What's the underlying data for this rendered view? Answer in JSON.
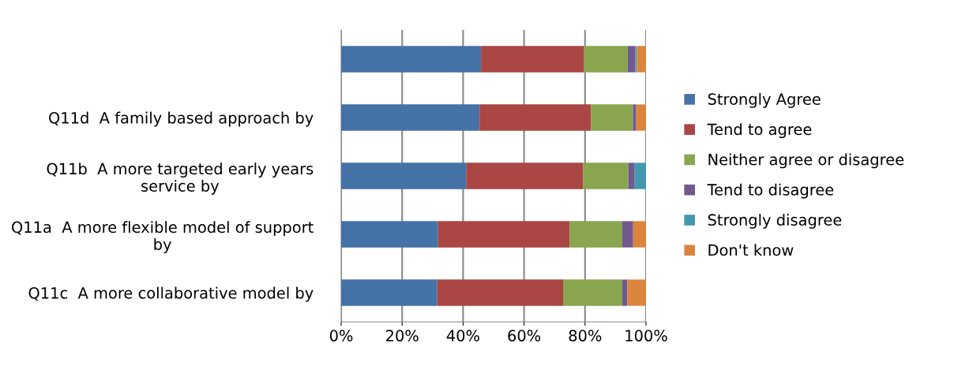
{
  "chart_data": {
    "type": "bar",
    "orientation": "horizontal",
    "stacked": true,
    "categories": [
      null,
      "Q11d  A family based approach by",
      "Q11b  A more targeted early years service by",
      "Q11a  A more flexible model of support by",
      "Q11c  A more collaborative model by"
    ],
    "series": [
      {
        "name": "Strongly Agree",
        "color": "#4572a7",
        "values": [
          45.9,
          45.4,
          41.0,
          31.7,
          31.5
        ]
      },
      {
        "name": "Tend to agree",
        "color": "#aa4643",
        "values": [
          33.8,
          36.6,
          38.4,
          43.2,
          41.3
        ]
      },
      {
        "name": "Neither agree or disagree",
        "color": "#89a54e",
        "values": [
          14.3,
          13.7,
          14.8,
          17.3,
          19.4
        ]
      },
      {
        "name": "Tend to disagree",
        "color": "#71588f",
        "values": [
          2.5,
          1.1,
          2.1,
          3.6,
          1.7
        ]
      },
      {
        "name": "Strongly disagree",
        "color": "#4198af",
        "values": [
          0.5,
          null,
          3.7,
          null,
          null
        ]
      },
      {
        "name": "Don't know",
        "color": "#db843d",
        "values": [
          3.0,
          3.2,
          null,
          4.2,
          6.1
        ]
      }
    ],
    "xlim": [
      0,
      100
    ],
    "xticks": [
      {
        "value": 0,
        "label": "0%"
      },
      {
        "value": 20,
        "label": "20%"
      },
      {
        "value": 40,
        "label": "40%"
      },
      {
        "value": 60,
        "label": "60%"
      },
      {
        "value": 80,
        "label": "80%"
      },
      {
        "value": 100,
        "label": "100%"
      }
    ],
    "grid": "x",
    "legend": "right"
  }
}
